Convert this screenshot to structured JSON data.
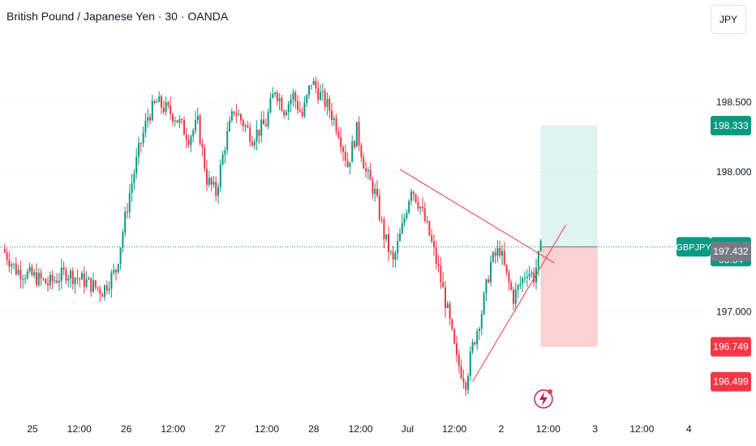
{
  "header": {
    "title": "British Pound / Japanese Yen · 30 · OANDA",
    "currency": "JPY"
  },
  "colors": {
    "up": "#089981",
    "down": "#f23645",
    "grid": "#f0f3fa",
    "text": "#131722",
    "tp_zone": "#d6efec",
    "sl_zone": "#fbcccc",
    "trendline": "#f23645",
    "current_line": "#089981"
  },
  "chart_data": {
    "type": "candlestick",
    "symbol": "GBPJPY",
    "interval": "30",
    "y_ticks": [
      "198.500",
      "198.000",
      "197.000"
    ],
    "x_ticks": [
      "25",
      "12:00",
      "26",
      "12:00",
      "27",
      "12:00",
      "28",
      "12:00",
      "Jul",
      "12:00",
      "2",
      "12:00",
      "3",
      "12:00",
      "4"
    ],
    "price_labels": {
      "take_profit": "198.333",
      "current_symbol": "GBPJPY",
      "current_price": "197.465",
      "countdown": "05:54",
      "entry": "197.432",
      "stop_loss": "196.749",
      "lower_level": "196.499"
    },
    "ylim": [
      196.3,
      199.0
    ],
    "levels": {
      "take_profit": 198.333,
      "current": 197.465,
      "entry": 197.432,
      "stop_loss": 196.749,
      "lower": 196.499
    },
    "close_path": [
      [
        0,
        197.45
      ],
      [
        6,
        197.3
      ],
      [
        14,
        197.25
      ],
      [
        20,
        197.2
      ],
      [
        28,
        197.28
      ],
      [
        36,
        197.22
      ],
      [
        44,
        197.15
      ],
      [
        50,
        197.3
      ],
      [
        56,
        197.85
      ],
      [
        60,
        198.15
      ],
      [
        64,
        198.4
      ],
      [
        68,
        198.5
      ],
      [
        72,
        198.45
      ],
      [
        76,
        198.4
      ],
      [
        82,
        198.25
      ],
      [
        86,
        198.35
      ],
      [
        90,
        197.95
      ],
      [
        94,
        197.85
      ],
      [
        98,
        198.2
      ],
      [
        102,
        198.45
      ],
      [
        106,
        198.35
      ],
      [
        110,
        198.25
      ],
      [
        116,
        198.35
      ],
      [
        120,
        198.6
      ],
      [
        124,
        198.45
      ],
      [
        128,
        198.55
      ],
      [
        132,
        198.4
      ],
      [
        136,
        198.65
      ],
      [
        140,
        198.55
      ],
      [
        144,
        198.45
      ],
      [
        148,
        198.3
      ],
      [
        152,
        198.05
      ],
      [
        156,
        198.3
      ],
      [
        160,
        198.0
      ],
      [
        164,
        197.85
      ],
      [
        168,
        197.55
      ],
      [
        172,
        197.35
      ],
      [
        176,
        197.6
      ],
      [
        180,
        197.9
      ],
      [
        184,
        197.75
      ],
      [
        188,
        197.55
      ],
      [
        192,
        197.3
      ],
      [
        196,
        197.0
      ],
      [
        200,
        196.65
      ],
      [
        204,
        196.5
      ],
      [
        207,
        196.75
      ],
      [
        211,
        197.0
      ],
      [
        215,
        197.35
      ],
      [
        219,
        197.45
      ],
      [
        222,
        197.25
      ],
      [
        225,
        197.1
      ],
      [
        228,
        197.2
      ],
      [
        231,
        197.3
      ],
      [
        234,
        197.25
      ],
      [
        237,
        197.45
      ]
    ],
    "trendlines": [
      {
        "from": [
          175,
          198.02
        ],
        "to": [
          243,
          197.35
        ]
      },
      {
        "from": [
          207,
          196.5
        ],
        "to": [
          248,
          197.62
        ]
      }
    ],
    "position": {
      "start": 237,
      "end": 262
    }
  }
}
